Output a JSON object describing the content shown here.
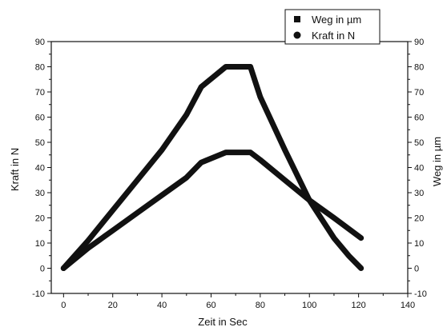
{
  "chart_data": {
    "type": "line",
    "xlabel": "Zeit in Sec",
    "ylabel_left": "Kraft in N",
    "ylabel_right": "Weg in µm",
    "xlim": [
      -5,
      140
    ],
    "ylim_left": [
      -10,
      90
    ],
    "ylim_right": [
      -10,
      90
    ],
    "x_ticks": [
      0,
      20,
      40,
      60,
      80,
      100,
      120,
      140
    ],
    "y_ticks": [
      -10,
      0,
      10,
      20,
      30,
      40,
      50,
      60,
      70,
      80,
      90
    ],
    "grid": false,
    "legend_position": "top-right",
    "legend": [
      {
        "label": "Weg in µm",
        "marker": "square"
      },
      {
        "label": "Kraft in N",
        "marker": "circle"
      }
    ],
    "series": [
      {
        "name": "Weg in µm",
        "axis": "right",
        "color": "#111111",
        "x": [
          0,
          10,
          20,
          30,
          40,
          50,
          56,
          61,
          66,
          70,
          76,
          80,
          90,
          100,
          110,
          116,
          121
        ],
        "y": [
          0,
          11,
          23,
          35,
          47,
          61,
          72,
          76,
          80,
          80,
          80,
          68,
          47,
          27,
          12,
          5,
          0
        ]
      },
      {
        "name": "Kraft in N",
        "axis": "left",
        "color": "#111111",
        "x": [
          0,
          10,
          20,
          30,
          40,
          50,
          56,
          66,
          76,
          80,
          90,
          100,
          110,
          121
        ],
        "y": [
          0,
          8,
          15,
          22,
          29,
          36,
          42,
          46,
          46,
          43,
          35,
          27,
          20,
          12
        ]
      }
    ]
  }
}
